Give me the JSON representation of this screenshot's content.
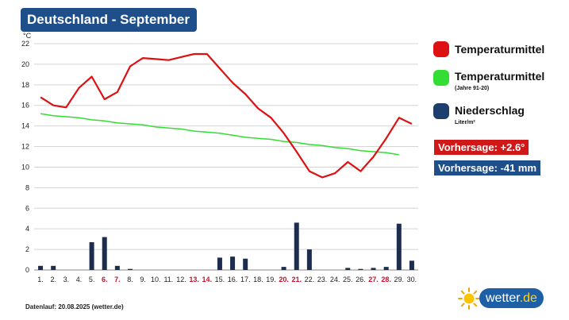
{
  "header": {
    "title": "Deutschland - September"
  },
  "chart_data": {
    "type": "line",
    "title": "Deutschland - September",
    "ylabel": "°C",
    "ylim": [
      0,
      22
    ],
    "yticks": [
      0,
      2,
      4,
      6,
      8,
      10,
      12,
      14,
      16,
      18,
      20,
      22
    ],
    "grid": true,
    "categories": [
      "1.",
      "2.",
      "3.",
      "4.",
      "5.",
      "6.",
      "7.",
      "8.",
      "9.",
      "10.",
      "11.",
      "12.",
      "13.",
      "14.",
      "15.",
      "16.",
      "17.",
      "18.",
      "19.",
      "20.",
      "21.",
      "22.",
      "23.",
      "24.",
      "25.",
      "26.",
      "27.",
      "28.",
      "29.",
      "30."
    ],
    "highlighted_days": [
      "6.",
      "7.",
      "13.",
      "14.",
      "20.",
      "21.",
      "27.",
      "28."
    ],
    "series": [
      {
        "name": "Temperaturmittel",
        "type": "line",
        "color": "#dd1111",
        "values": [
          16.8,
          16.0,
          15.8,
          17.7,
          18.8,
          16.6,
          17.3,
          19.8,
          20.6,
          20.5,
          20.4,
          20.7,
          21.0,
          21.0,
          19.6,
          18.2,
          17.1,
          15.7,
          14.8,
          13.3,
          11.5,
          9.6,
          9.0,
          9.4,
          10.5,
          9.6,
          11.0,
          12.8,
          14.8,
          14.2
        ]
      },
      {
        "name": "Temperaturmittel",
        "subtitle": "(Jahre 91-20)",
        "type": "line",
        "color": "#33dd33",
        "values": [
          15.2,
          15.0,
          14.9,
          14.8,
          14.6,
          14.5,
          14.3,
          14.2,
          14.1,
          13.9,
          13.8,
          13.7,
          13.5,
          13.4,
          13.3,
          13.1,
          12.9,
          12.8,
          12.7,
          12.5,
          12.4,
          12.2,
          12.1,
          11.9,
          11.8,
          11.6,
          11.5,
          11.4,
          11.2,
          null
        ]
      },
      {
        "name": "Niederschlag",
        "unit": "Liter/m²",
        "type": "bar",
        "color": "#1c2d4f",
        "values": [
          0.4,
          0.4,
          0,
          0,
          2.7,
          3.2,
          0.4,
          0.1,
          0,
          0,
          0,
          0,
          0,
          0,
          1.2,
          1.3,
          1.1,
          0,
          0,
          0.3,
          4.6,
          2.0,
          0,
          0,
          0.2,
          0.1,
          0.2,
          0.3,
          4.5,
          0.9
        ]
      }
    ]
  },
  "legend": [
    {
      "label": "Temperaturmittel",
      "sub": "",
      "color": "#dd1111"
    },
    {
      "label": "Temperaturmittel",
      "sub": "(Jahre 91-20)",
      "color": "#33dd33"
    },
    {
      "label": "Niederschlag",
      "sub": "Liter/m²",
      "color": "#1c3f6e"
    }
  ],
  "forecasts": {
    "temperature": {
      "text": "Vorhersage: +2.6°",
      "color": "#d01818"
    },
    "precipitation": {
      "text": "Vorhersage: -41 mm",
      "color": "#1f4f8a"
    }
  },
  "footer": {
    "text": "Datenlauf: 20.08.2025 (wetter.de)"
  },
  "logo": {
    "text_main": "wetter",
    "text_tld": ".de",
    "icon": "sun-icon"
  }
}
